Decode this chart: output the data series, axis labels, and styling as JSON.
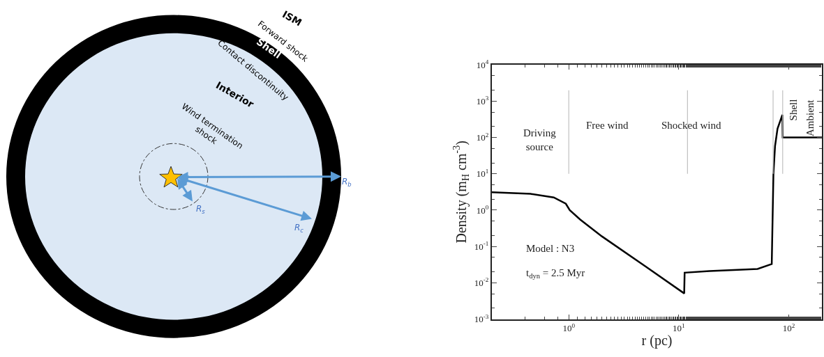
{
  "chart_data": [
    {
      "type": "other",
      "annotations": [
        "ISM",
        "Forward shock",
        "Shell",
        "Contact discontinuity",
        "Interior",
        "Wind termination\nshock",
        "R$_{b}$",
        "R$_{c}$",
        "R$_{s}$"
      ]
    },
    {
      "type": "line",
      "xlabel": "r (pc)",
      "ylabel": "Density (m$_{H}$ cm$^{-3}$)",
      "log": "xy",
      "xlim": [
        0.2,
        200
      ],
      "ylim": [
        0.001,
        10000
      ],
      "xticks": [
        {
          "value": 1,
          "label": "10$^{0}$"
        },
        {
          "value": 10,
          "label": "10$^{1}$"
        },
        {
          "value": 100,
          "label": "10$^{2}$"
        }
      ],
      "yticks": [
        {
          "value": 0.001,
          "label": "10$^{-3}$"
        },
        {
          "value": 0.01,
          "label": "10$^{-2}$"
        },
        {
          "value": 0.1,
          "label": "10$^{-1}$"
        },
        {
          "value": 1,
          "label": "10$^{0}$"
        },
        {
          "value": 10,
          "label": "10$^{1}$"
        },
        {
          "value": 100,
          "label": "10$^{2}$"
        },
        {
          "value": 1000,
          "label": "10$^{3}$"
        },
        {
          "value": 10000,
          "label": "10$^{4}$"
        }
      ],
      "series": [
        {
          "color": "#000000",
          "x": [
            0.2,
            0.45,
            0.73,
            0.94,
            1.02,
            1.27,
            2.0,
            5.0,
            11.2,
            11.3,
            19,
            52,
            70,
            72.5,
            75,
            79,
            87.5,
            88,
            200
          ],
          "values": [
            3.1,
            2.8,
            2.24,
            1.5,
            1.0,
            0.55,
            0.19,
            0.028,
            0.0051,
            0.019,
            0.021,
            0.024,
            0.033,
            10,
            58,
            175,
            420,
            100,
            100
          ]
        }
      ],
      "ref_lines": [
        {
          "axis": "x",
          "value": 1,
          "color": "#c0c0c0"
        },
        {
          "axis": "x",
          "value": 12,
          "color": "#c0c0c0"
        },
        {
          "axis": "x",
          "value": 72,
          "color": "#c0c0c0"
        },
        {
          "axis": "x",
          "value": 88,
          "color": "#c0c0c0"
        }
      ],
      "annotations": [
        "Driving\nsource",
        "Free wind",
        "Shocked wind",
        "Shell",
        "Ambient",
        "Model : N3",
        "t$_{dyn}$ = 2.5 Myr"
      ]
    }
  ]
}
